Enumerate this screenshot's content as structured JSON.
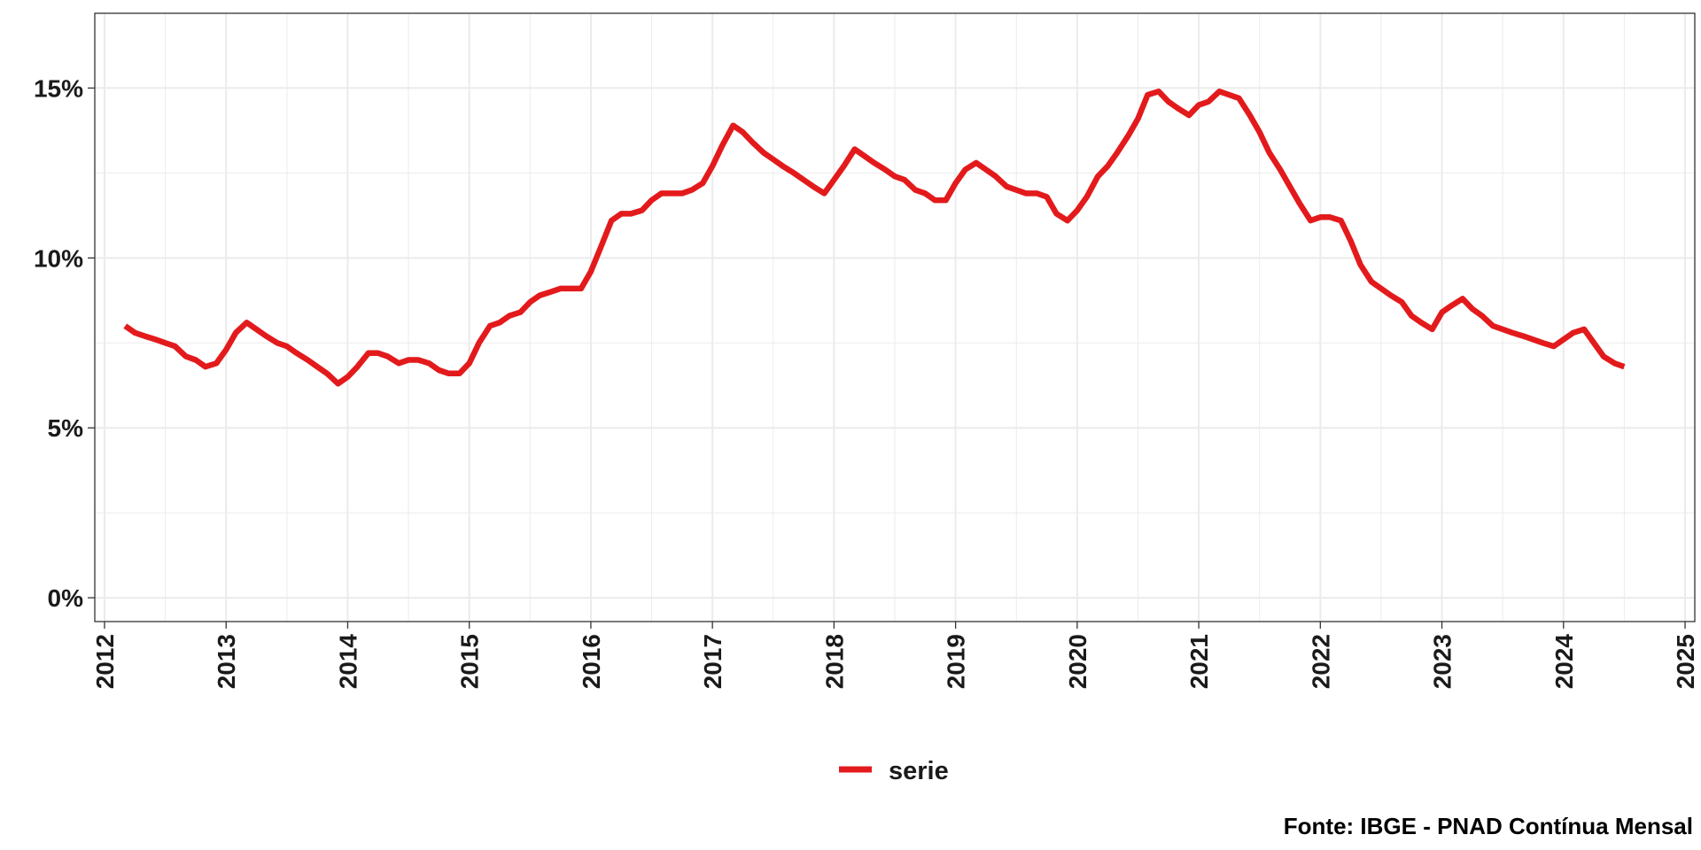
{
  "chart_data": {
    "type": "line",
    "x_unit": "year",
    "xlim": [
      2011.92,
      2025.08
    ],
    "ylim": [
      -0.7,
      17.2
    ],
    "x_ticks": [
      2012,
      2013,
      2014,
      2015,
      2016,
      2017,
      2018,
      2019,
      2020,
      2021,
      2022,
      2023,
      2024,
      2025
    ],
    "y_ticks": [
      0,
      5,
      10,
      15
    ],
    "y_tick_labels": [
      "0%",
      "5%",
      "10%",
      "15%"
    ],
    "grid": true,
    "legend_position": "bottom",
    "caption": "Fonte: IBGE - PNAD Contínua Mensal",
    "colors": {
      "series": "#e31a1c",
      "grid": "#ebebeb",
      "axis": "#333333"
    },
    "series": [
      {
        "name": "serie",
        "x": [
          2012.17,
          2012.25,
          2012.33,
          2012.42,
          2012.5,
          2012.58,
          2012.67,
          2012.75,
          2012.83,
          2012.92,
          2013.0,
          2013.08,
          2013.17,
          2013.25,
          2013.33,
          2013.42,
          2013.5,
          2013.58,
          2013.67,
          2013.75,
          2013.83,
          2013.92,
          2014.0,
          2014.08,
          2014.17,
          2014.25,
          2014.33,
          2014.42,
          2014.5,
          2014.58,
          2014.67,
          2014.75,
          2014.83,
          2014.92,
          2015.0,
          2015.08,
          2015.17,
          2015.25,
          2015.33,
          2015.42,
          2015.5,
          2015.58,
          2015.67,
          2015.75,
          2015.83,
          2015.92,
          2016.0,
          2016.08,
          2016.17,
          2016.25,
          2016.33,
          2016.42,
          2016.5,
          2016.58,
          2016.67,
          2016.75,
          2016.83,
          2016.92,
          2017.0,
          2017.08,
          2017.17,
          2017.25,
          2017.33,
          2017.42,
          2017.5,
          2017.58,
          2017.67,
          2017.75,
          2017.83,
          2017.92,
          2018.0,
          2018.08,
          2018.17,
          2018.25,
          2018.33,
          2018.42,
          2018.5,
          2018.58,
          2018.67,
          2018.75,
          2018.83,
          2018.92,
          2019.0,
          2019.08,
          2019.17,
          2019.25,
          2019.33,
          2019.42,
          2019.5,
          2019.58,
          2019.67,
          2019.75,
          2019.83,
          2019.92,
          2020.0,
          2020.08,
          2020.17,
          2020.25,
          2020.33,
          2020.42,
          2020.5,
          2020.58,
          2020.67,
          2020.75,
          2020.83,
          2020.92,
          2021.0,
          2021.08,
          2021.17,
          2021.25,
          2021.33,
          2021.42,
          2021.5,
          2021.58,
          2021.67,
          2021.75,
          2021.83,
          2021.92,
          2022.0,
          2022.08,
          2022.17,
          2022.25,
          2022.33,
          2022.42,
          2022.5,
          2022.58,
          2022.67,
          2022.75,
          2022.83,
          2022.92,
          2023.0,
          2023.08,
          2023.17,
          2023.25,
          2023.33,
          2023.42,
          2023.5,
          2023.58,
          2023.67,
          2023.75,
          2023.83,
          2023.92,
          2024.0,
          2024.08,
          2024.17,
          2024.25,
          2024.33,
          2024.42,
          2024.5
        ],
        "values": [
          8.0,
          7.8,
          7.7,
          7.6,
          7.5,
          7.4,
          7.1,
          7.0,
          6.8,
          6.9,
          7.3,
          7.8,
          8.1,
          7.9,
          7.7,
          7.5,
          7.4,
          7.2,
          7.0,
          6.8,
          6.6,
          6.3,
          6.5,
          6.8,
          7.2,
          7.2,
          7.1,
          6.9,
          7.0,
          7.0,
          6.9,
          6.7,
          6.6,
          6.6,
          6.9,
          7.5,
          8.0,
          8.1,
          8.3,
          8.4,
          8.7,
          8.9,
          9.0,
          9.1,
          9.1,
          9.1,
          9.6,
          10.3,
          11.1,
          11.3,
          11.3,
          11.4,
          11.7,
          11.9,
          11.9,
          11.9,
          12.0,
          12.2,
          12.7,
          13.3,
          13.9,
          13.7,
          13.4,
          13.1,
          12.9,
          12.7,
          12.5,
          12.3,
          12.1,
          11.9,
          12.3,
          12.7,
          13.2,
          13.0,
          12.8,
          12.6,
          12.4,
          12.3,
          12.0,
          11.9,
          11.7,
          11.7,
          12.2,
          12.6,
          12.8,
          12.6,
          12.4,
          12.1,
          12.0,
          11.9,
          11.9,
          11.8,
          11.3,
          11.1,
          11.4,
          11.8,
          12.4,
          12.7,
          13.1,
          13.6,
          14.1,
          14.8,
          14.9,
          14.6,
          14.4,
          14.2,
          14.5,
          14.6,
          14.9,
          14.8,
          14.7,
          14.2,
          13.7,
          13.1,
          12.6,
          12.1,
          11.6,
          11.1,
          11.2,
          11.2,
          11.1,
          10.5,
          9.8,
          9.3,
          9.1,
          8.9,
          8.7,
          8.3,
          8.1,
          7.9,
          8.4,
          8.6,
          8.8,
          8.5,
          8.3,
          8.0,
          7.9,
          7.8,
          7.7,
          7.6,
          7.5,
          7.4,
          7.6,
          7.8,
          7.9,
          7.5,
          7.1,
          6.9,
          6.8
        ]
      }
    ]
  }
}
